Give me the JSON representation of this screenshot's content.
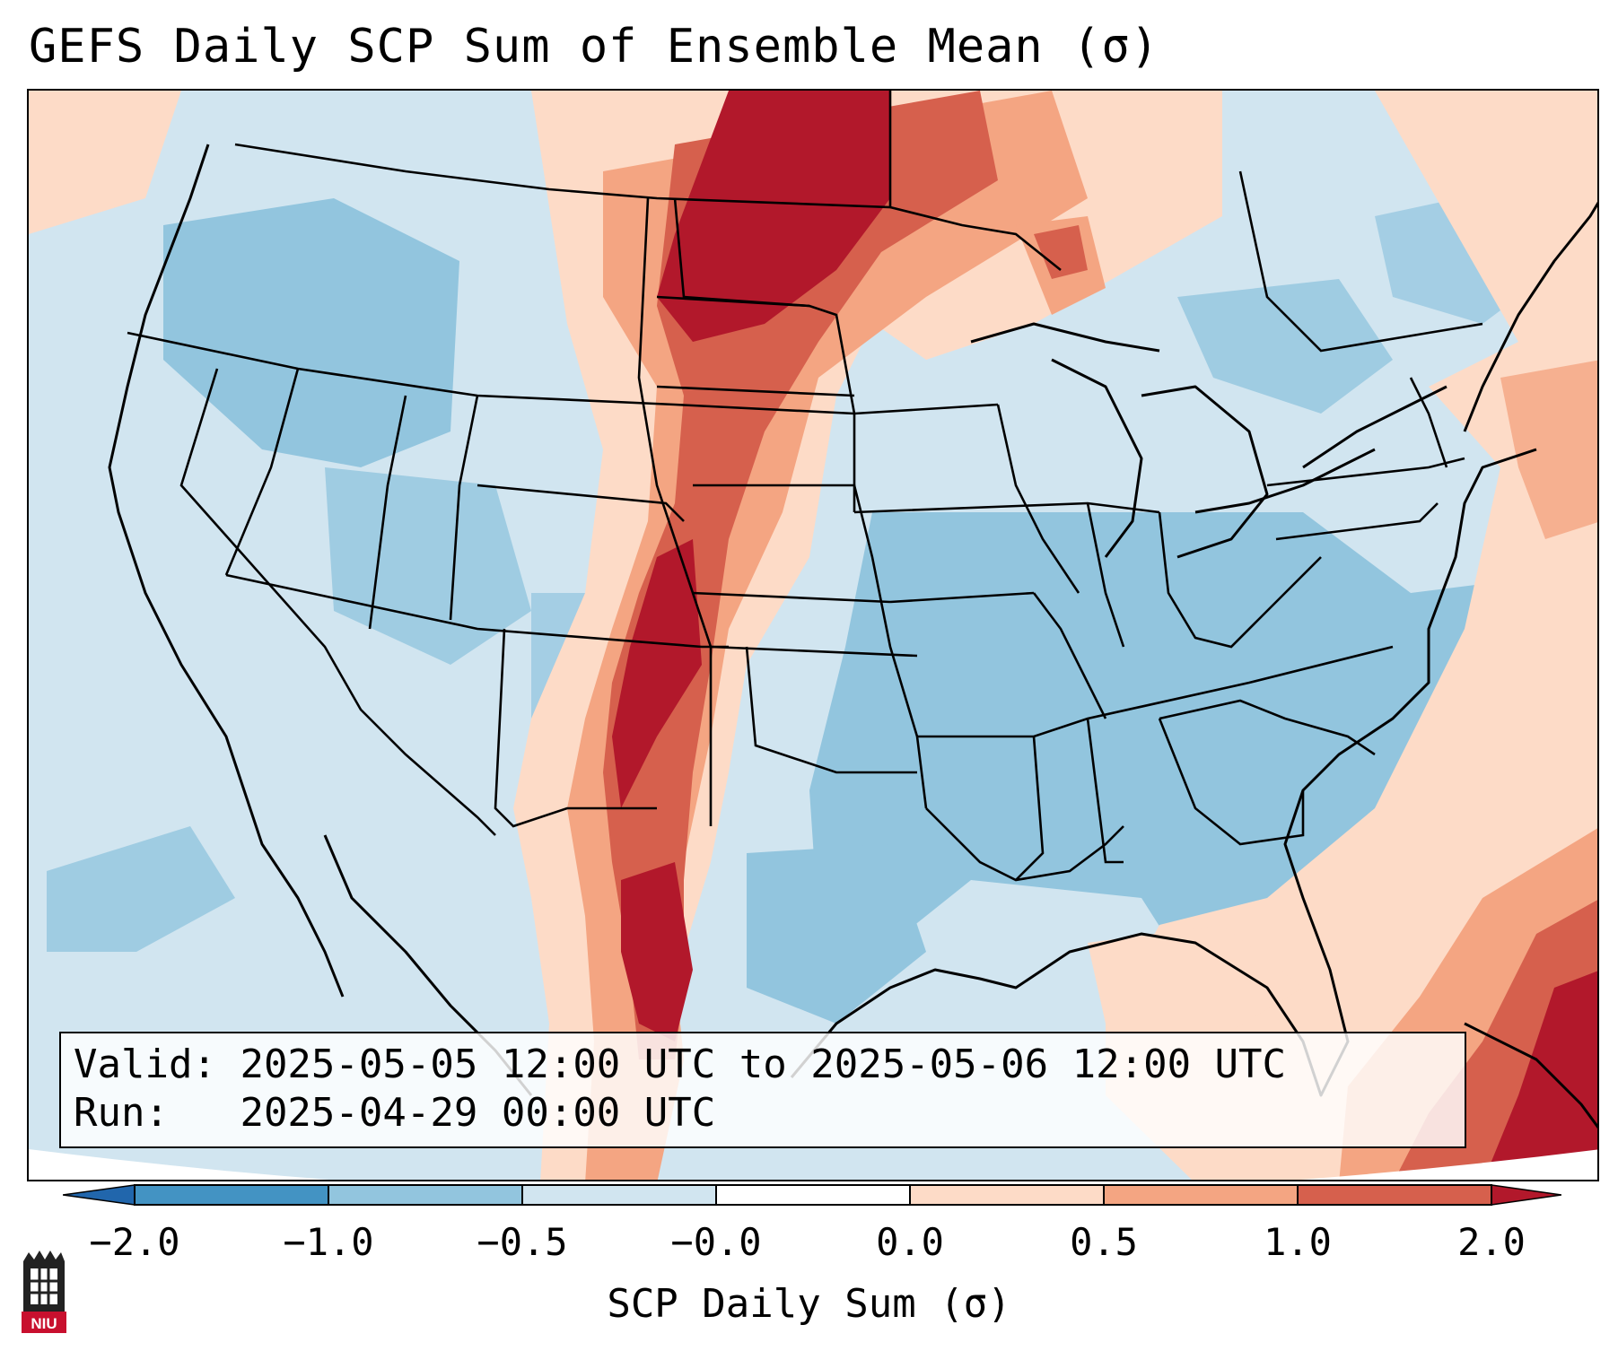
{
  "title": "GEFS Daily SCP Sum of Ensemble Mean (σ)",
  "info": {
    "valid_label": "Valid:",
    "valid_text": "2025-05-05 12:00 UTC to 2025-05-06 12:00 UTC",
    "run_label": "Run:",
    "run_text": "2025-04-29 00:00 UTC"
  },
  "colorbar": {
    "label": "SCP Daily Sum (σ)",
    "ticks": [
      "−2.0",
      "−1.0",
      "−0.5",
      "−0.0",
      "0.0",
      "0.5",
      "1.0",
      "2.0"
    ],
    "colors": [
      "#4393c3",
      "#92c5de",
      "#d1e5f0",
      "#fddbc7",
      "#f4a582",
      "#d6604d",
      "#b2182b"
    ],
    "extend_low_color": "#2166ac",
    "extend_high_color": "#b2182b"
  },
  "logo": {
    "text": "NIU",
    "color": "#c8102e"
  }
}
